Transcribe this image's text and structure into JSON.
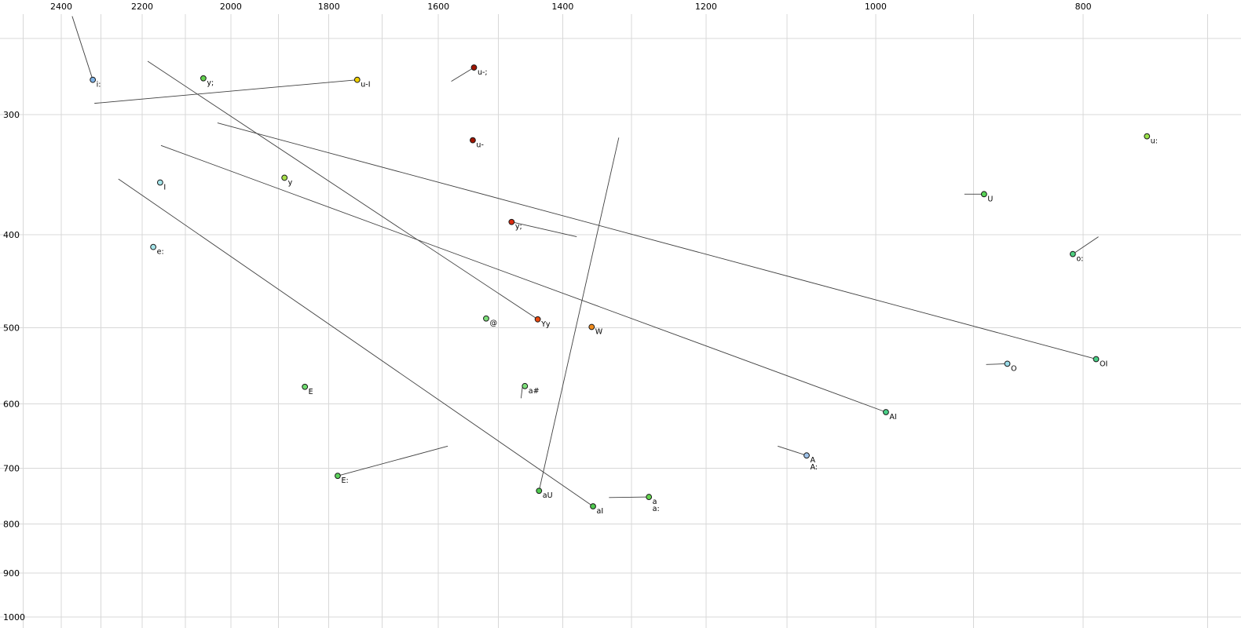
{
  "chart_data": {
    "type": "scatter",
    "title": "",
    "grid": true,
    "style": {
      "background": "#ffffff",
      "grid_color": "#d8d8d8",
      "trajectory_color": "#404040",
      "point_stroke": "#1a1a1a"
    },
    "x_axis": {
      "scale": "log",
      "direction": "values-decrease-rightward",
      "range": [
        2500,
        700
      ],
      "tick_values": [
        2400,
        2200,
        2000,
        1800,
        1600,
        1400,
        1200,
        1000,
        800
      ],
      "grid_values": [
        2500,
        2400,
        2300,
        2200,
        2100,
        2000,
        1900,
        1800,
        1700,
        1600,
        1500,
        1400,
        1300,
        1200,
        1100,
        1000,
        900,
        800,
        700
      ]
    },
    "y_axis": {
      "scale": "log",
      "direction": "values-increase-downward",
      "range": [
        250,
        1000
      ],
      "tick_values": [
        300,
        400,
        500,
        600,
        700,
        800,
        900,
        1000
      ],
      "grid_values": [
        250,
        300,
        400,
        500,
        600,
        700,
        800,
        900,
        1000
      ]
    },
    "points": [
      {
        "labels": [
          "i:"
        ],
        "f2": 2320,
        "f1": 276,
        "color": "#7fb2e5"
      },
      {
        "labels": [
          "y;"
        ],
        "f2": 2060,
        "f1": 275,
        "color": "#63d34e"
      },
      {
        "labels": [
          "u-I"
        ],
        "f2": 1746,
        "f1": 276,
        "color": "#f0d000"
      },
      {
        "labels": [
          "u-;"
        ],
        "f2": 1540,
        "f1": 268,
        "color": "#a01500"
      },
      {
        "labels": [
          "u-"
        ],
        "f2": 1542,
        "f1": 319,
        "color": "#a01500"
      },
      {
        "labels": [
          "y"
        ],
        "f2": 1888,
        "f1": 349,
        "color": "#a8e04a"
      },
      {
        "labels": [
          "I"
        ],
        "f2": 2158,
        "f1": 353,
        "color": "#a5e5ea"
      },
      {
        "labels": [
          "U"
        ],
        "f2": 890,
        "f1": 363,
        "color": "#58d457"
      },
      {
        "labels": [
          "u:"
        ],
        "f2": 747,
        "f1": 316,
        "color": "#9be34a"
      },
      {
        "labels": [
          "e:"
        ],
        "f2": 2174,
        "f1": 412,
        "color": "#a5e5ea"
      },
      {
        "labels": [
          "o:"
        ],
        "f2": 809,
        "f1": 419,
        "color": "#4ecf7f"
      },
      {
        "labels": [
          "y;"
        ],
        "f2": 1479,
        "f1": 388,
        "color": "#d92b10"
      },
      {
        "labels": [
          "@"
        ],
        "f2": 1520,
        "f1": 489,
        "color": "#7de07a"
      },
      {
        "labels": [
          "Yy"
        ],
        "f2": 1438,
        "f1": 490,
        "color": "#e8490f"
      },
      {
        "labels": [
          "W"
        ],
        "f2": 1357,
        "f1": 499,
        "color": "#ef8b1d"
      },
      {
        "labels": [
          "O"
        ],
        "f2": 868,
        "f1": 545,
        "color": "#9adbe8"
      },
      {
        "labels": [
          "OI"
        ],
        "f2": 789,
        "f1": 539,
        "color": "#49cf86"
      },
      {
        "labels": [
          "E"
        ],
        "f2": 1847,
        "f1": 576,
        "color": "#6fdc6f"
      },
      {
        "labels": [
          "a#"
        ],
        "f2": 1458,
        "f1": 575,
        "color": "#7de07a"
      },
      {
        "labels": [
          "AI"
        ],
        "f2": 989,
        "f1": 612,
        "color": "#49cf86"
      },
      {
        "labels": [
          "A",
          "A:"
        ],
        "f2": 1077,
        "f1": 679,
        "color": "#9fc3ea"
      },
      {
        "labels": [
          "E:"
        ],
        "f2": 1783,
        "f1": 713,
        "color": "#5ed45e"
      },
      {
        "labels": [
          "aU"
        ],
        "f2": 1436,
        "f1": 739,
        "color": "#4fc94f"
      },
      {
        "labels": [
          "aI"
        ],
        "f2": 1355,
        "f1": 767,
        "color": "#4fc94f"
      },
      {
        "labels": [
          "a",
          "a:"
        ],
        "f2": 1276,
        "f1": 750,
        "color": "#63d34e"
      }
    ],
    "trajectories": [
      {
        "name": "i:",
        "from": {
          "f2": 2372,
          "f1": 237
        },
        "to": {
          "f2": 2320,
          "f1": 276
        }
      },
      {
        "name": "u-I",
        "from": {
          "f2": 2316,
          "f1": 292
        },
        "to": {
          "f2": 1746,
          "f1": 276
        }
      },
      {
        "name": "u-;",
        "from": {
          "f2": 1578,
          "f1": 277
        },
        "to": {
          "f2": 1540,
          "f1": 268
        }
      },
      {
        "name": "Yy",
        "from": {
          "f2": 2187,
          "f1": 264
        },
        "to": {
          "f2": 1438,
          "f1": 490
        }
      },
      {
        "name": "OI",
        "from": {
          "f2": 2029,
          "f1": 306
        },
        "to": {
          "f2": 789,
          "f1": 539
        }
      },
      {
        "name": "AI",
        "from": {
          "f2": 2156,
          "f1": 323
        },
        "to": {
          "f2": 989,
          "f1": 612
        }
      },
      {
        "name": "aI",
        "from": {
          "f2": 2257,
          "f1": 350
        },
        "to": {
          "f2": 1355,
          "f1": 767
        }
      },
      {
        "name": "aU",
        "from": {
          "f2": 1318,
          "f1": 317
        },
        "to": {
          "f2": 1436,
          "f1": 739
        }
      },
      {
        "name": "y;",
        "from": {
          "f2": 1479,
          "f1": 388
        },
        "to": {
          "f2": 1379,
          "f1": 402
        }
      },
      {
        "name": "U",
        "from": {
          "f2": 909,
          "f1": 363
        },
        "to": {
          "f2": 890,
          "f1": 363
        }
      },
      {
        "name": "o:",
        "from": {
          "f2": 809,
          "f1": 419
        },
        "to": {
          "f2": 787,
          "f1": 402
        }
      },
      {
        "name": "O",
        "from": {
          "f2": 888,
          "f1": 546
        },
        "to": {
          "f2": 868,
          "f1": 545
        }
      },
      {
        "name": "A",
        "from": {
          "f2": 1111,
          "f1": 664
        },
        "to": {
          "f2": 1077,
          "f1": 679
        }
      },
      {
        "name": "E:",
        "from": {
          "f2": 1783,
          "f1": 713
        },
        "to": {
          "f2": 1584,
          "f1": 664
        }
      },
      {
        "name": "a",
        "from": {
          "f2": 1332,
          "f1": 751
        },
        "to": {
          "f2": 1276,
          "f1": 750
        }
      },
      {
        "name": "a#",
        "from": {
          "f2": 1462,
          "f1": 577
        },
        "to": {
          "f2": 1464,
          "f1": 592
        }
      }
    ]
  }
}
